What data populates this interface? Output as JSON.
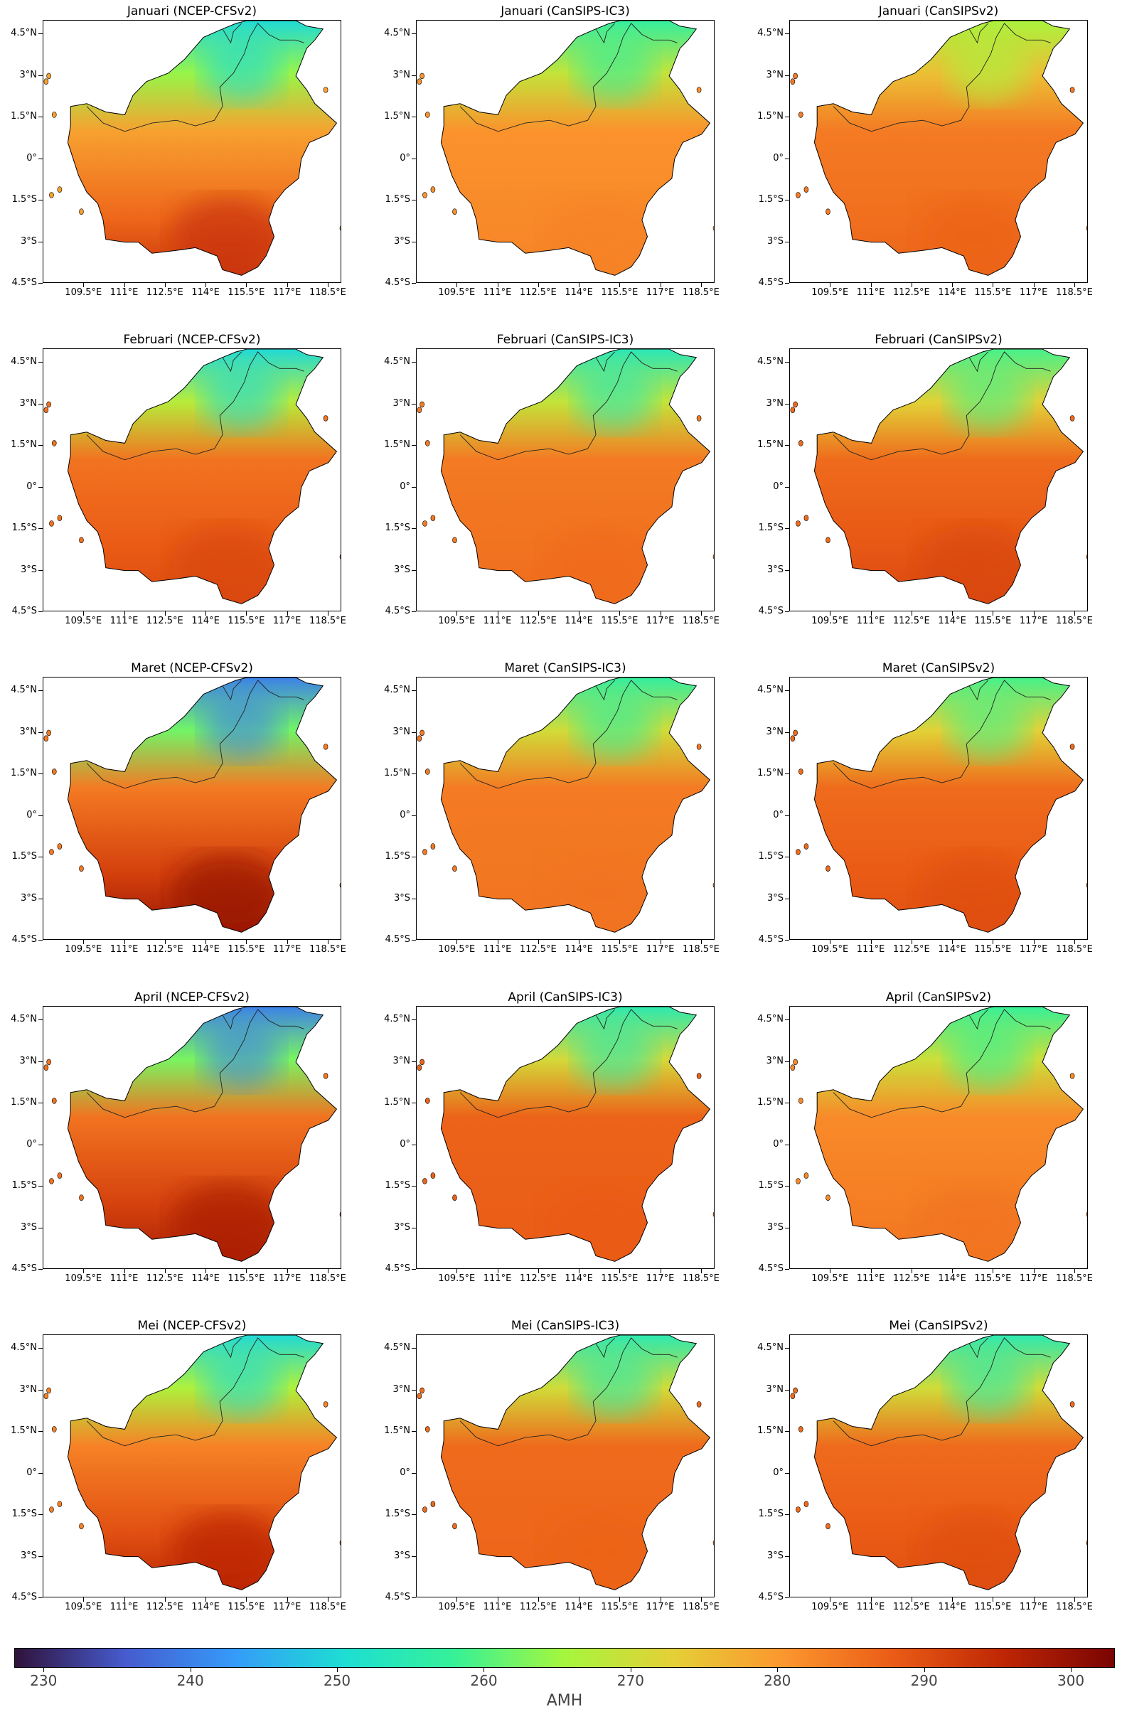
{
  "panels": [
    {
      "title": "Januari (NCEP-CFSv2)",
      "model": "NCEP-CFSv2",
      "month": "Januari",
      "base": 279,
      "north_min": 250,
      "south_max": 294
    },
    {
      "title": "Januari (CanSIPS-IC3)",
      "model": "CanSIPS-IC3",
      "month": "Januari",
      "base": 281,
      "north_min": 257,
      "south_max": 283
    },
    {
      "title": "Januari (CanSIPSv2)",
      "model": "CanSIPSv2",
      "month": "Januari",
      "base": 284,
      "north_min": 266,
      "south_max": 287
    },
    {
      "title": "Februari (NCEP-CFSv2)",
      "model": "NCEP-CFSv2",
      "month": "Februari",
      "base": 285,
      "north_min": 250,
      "south_max": 291
    },
    {
      "title": "Februari (CanSIPS-IC3)",
      "model": "CanSIPS-IC3",
      "month": "Februari",
      "base": 284,
      "north_min": 254,
      "south_max": 286
    },
    {
      "title": "Februari (CanSIPSv2)",
      "model": "CanSIPSv2",
      "month": "Februari",
      "base": 286,
      "north_min": 259,
      "south_max": 291
    },
    {
      "title": "Maret (NCEP-CFSv2)",
      "model": "NCEP-CFSv2",
      "month": "Maret",
      "base": 284,
      "north_min": 240,
      "south_max": 300
    },
    {
      "title": "Maret (CanSIPS-IC3)",
      "model": "CanSIPS-IC3",
      "month": "Maret",
      "base": 284,
      "north_min": 257,
      "south_max": 285
    },
    {
      "title": "Maret (CanSIPSv2)",
      "model": "CanSIPSv2",
      "month": "Maret",
      "base": 286,
      "north_min": 259,
      "south_max": 290
    },
    {
      "title": "April (NCEP-CFSv2)",
      "model": "NCEP-CFSv2",
      "month": "April",
      "base": 285,
      "north_min": 240,
      "south_max": 298
    },
    {
      "title": "April (CanSIPS-IC3)",
      "model": "CanSIPS-IC3",
      "month": "April",
      "base": 287,
      "north_min": 255,
      "south_max": 288
    },
    {
      "title": "April (CanSIPSv2)",
      "model": "CanSIPSv2",
      "month": "April",
      "base": 282,
      "north_min": 258,
      "south_max": 285
    },
    {
      "title": "Mei (NCEP-CFSv2)",
      "model": "NCEP-CFSv2",
      "month": "Mei",
      "base": 283,
      "north_min": 250,
      "south_max": 296
    },
    {
      "title": "Mei (CanSIPS-IC3)",
      "model": "CanSIPS-IC3",
      "month": "Mei",
      "base": 286,
      "north_min": 255,
      "south_max": 287
    },
    {
      "title": "Mei (CanSIPSv2)",
      "model": "CanSIPSv2",
      "month": "Mei",
      "base": 286,
      "north_min": 255,
      "south_max": 290
    }
  ],
  "axes": {
    "y_ticks": [
      "4.5°N",
      "3°N",
      "1.5°N",
      "0°",
      "1.5°S",
      "3°S",
      "4.5°S"
    ],
    "x_ticks": [
      "109.5°E",
      "111°E",
      "112.5°E",
      "114°E",
      "115.5°E",
      "117°E",
      "118.5°E"
    ],
    "lat_range": [
      -4.5,
      5.0
    ],
    "lon_range": [
      108.0,
      119.0
    ]
  },
  "colorbar": {
    "label": "AMH",
    "min": 228,
    "max": 303,
    "ticks": [
      "230",
      "240",
      "250",
      "260",
      "270",
      "280",
      "290",
      "300"
    ],
    "colormap": "turbo"
  }
}
